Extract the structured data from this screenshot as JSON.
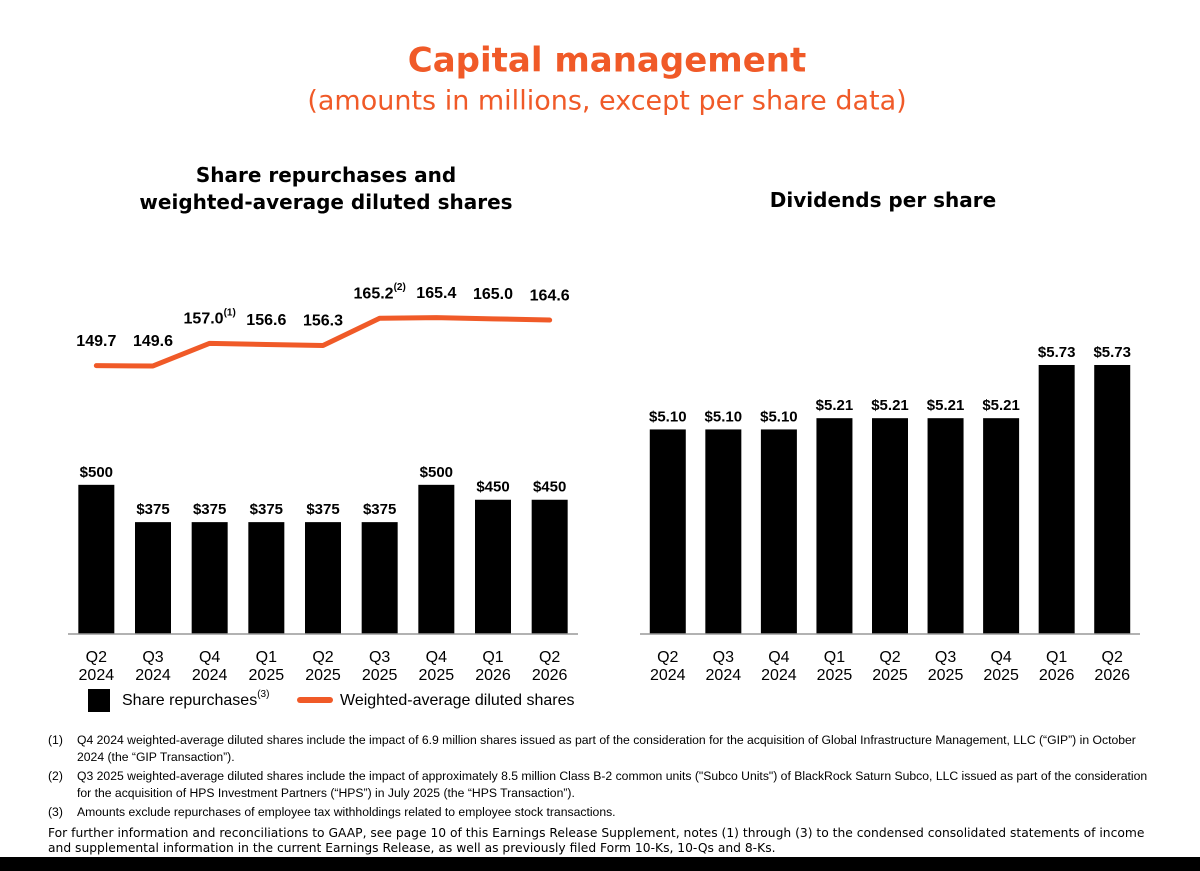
{
  "title": "Capital management",
  "subtitle": "(amounts in millions, except per share data)",
  "chart_data": [
    {
      "type": "bar",
      "title": "Share repurchases and weighted-average diluted shares",
      "categories": [
        "Q2 2024",
        "Q3 2024",
        "Q4 2024",
        "Q1 2025",
        "Q2 2025",
        "Q3 2025",
        "Q4 2025",
        "Q1 2026",
        "Q2 2026"
      ],
      "ylim": [
        0,
        1200
      ],
      "y2lim": [
        62,
        179
      ],
      "legend": "bottom-left",
      "series": [
        {
          "name": "Share repurchases",
          "name_note": "(3)",
          "type": "bar",
          "color": "#000000",
          "values": [
            500,
            375,
            375,
            375,
            375,
            375,
            500,
            450,
            450
          ],
          "value_labels": [
            "$500",
            "$375",
            "$375",
            "$375",
            "$375",
            "$375",
            "$500",
            "$450",
            "$450"
          ]
        },
        {
          "name": "Weighted-average diluted shares",
          "type": "line",
          "axis": "y2",
          "color": "#f05a28",
          "values": [
            149.7,
            149.6,
            157.0,
            156.6,
            156.3,
            165.2,
            165.4,
            165.0,
            164.6
          ],
          "value_labels": [
            "149.7",
            "149.6",
            "157.0",
            "156.6",
            "156.3",
            "165.2",
            "165.4",
            "165.0",
            "164.6"
          ],
          "value_notes": [
            null,
            null,
            "(1)",
            null,
            null,
            "(2)",
            null,
            null,
            null
          ]
        }
      ]
    },
    {
      "type": "bar",
      "title": "Dividends per share",
      "categories": [
        "Q2 2024",
        "Q3 2024",
        "Q4 2024",
        "Q1 2025",
        "Q2 2025",
        "Q3 2025",
        "Q4 2025",
        "Q1 2026",
        "Q2 2026"
      ],
      "ylim": [
        3.1,
        6.6
      ],
      "color": "#000000",
      "values": [
        5.1,
        5.1,
        5.1,
        5.21,
        5.21,
        5.21,
        5.21,
        5.73,
        5.73
      ],
      "value_labels": [
        "$5.10",
        "$5.10",
        "$5.10",
        "$5.21",
        "$5.21",
        "$5.21",
        "$5.21",
        "$5.73",
        "$5.73"
      ]
    }
  ],
  "footnotes": [
    {
      "marker": "(1)",
      "text": "Q4 2024 weighted-average diluted shares include the impact of 6.9 million shares issued as part of the consideration for the acquisition of Global Infrastructure Management, LLC (“GIP”) in October 2024 (the “GIP Transaction”)."
    },
    {
      "marker": "(2)",
      "text": "Q3 2025 weighted-average diluted shares include the impact of approximately 8.5 million Class B-2 common units (\"Subco Units\") of BlackRock Saturn Subco, LLC issued as part of the consideration for the acquisition of HPS Investment Partners (“HPS”) in July 2025 (the “HPS Transaction”)."
    },
    {
      "marker": "(3)",
      "text": "Amounts exclude repurchases of employee tax withholdings related to employee stock transactions."
    }
  ],
  "footer": "For further information and reconciliations to GAAP, see page 10 of this Earnings Release Supplement, notes (1) through (3) to the condensed consolidated statements of income and supplemental information in the current Earnings Release, as well as previously filed Form 10-Ks, 10-Qs and 8-Ks."
}
